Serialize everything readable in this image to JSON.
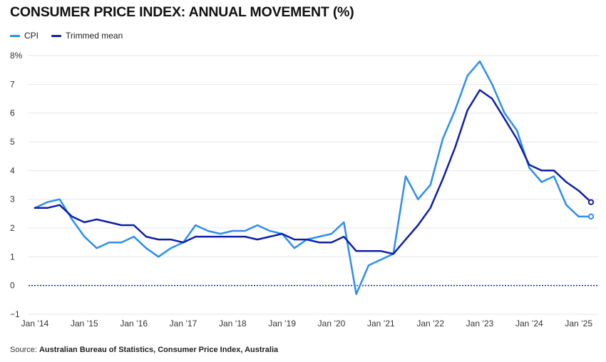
{
  "colors": {
    "cpi": "#2b8ef0",
    "trimmed": "#0d1fa8",
    "zero_line": "#0d1fa8",
    "grid": "#e6e6e6"
  },
  "chart_data": {
    "type": "line",
    "title": "CONSUMER PRICE INDEX: ANNUAL MOVEMENT (%)",
    "ylim": [
      -1,
      8
    ],
    "y_ticks": [
      "8%",
      "7",
      "6",
      "5",
      "4",
      "3",
      "2",
      "1",
      "0",
      "−1"
    ],
    "x_ticks": [
      "Jan ’14",
      "Jan ’15",
      "Jan ’16",
      "Jan ’17",
      "Jan ’18",
      "Jan ’19",
      "Jan ’20",
      "Jan ’21",
      "Jan ’22",
      "Jan ’23",
      "Jan ’24",
      "Jan ’25"
    ],
    "x_start": "2014-01",
    "x_step_months": 3,
    "grid": "horizontal",
    "legend_position": "top-left",
    "series": [
      {
        "name": "CPI",
        "values": [
          2.7,
          2.9,
          3.0,
          2.3,
          1.7,
          1.3,
          1.5,
          1.5,
          1.7,
          1.3,
          1.0,
          1.3,
          1.5,
          2.1,
          1.9,
          1.8,
          1.9,
          1.9,
          2.1,
          1.9,
          1.8,
          1.3,
          1.6,
          1.7,
          1.8,
          2.2,
          -0.3,
          0.7,
          0.9,
          1.1,
          3.8,
          3.0,
          3.5,
          5.1,
          6.1,
          7.3,
          7.8,
          7.0,
          6.0,
          5.4,
          4.1,
          3.6,
          3.8,
          2.8,
          2.4,
          2.4
        ]
      },
      {
        "name": "Trimmed mean",
        "values": [
          2.7,
          2.7,
          2.8,
          2.4,
          2.2,
          2.3,
          2.2,
          2.1,
          2.1,
          1.7,
          1.6,
          1.6,
          1.5,
          1.7,
          1.7,
          1.7,
          1.7,
          1.7,
          1.6,
          1.7,
          1.8,
          1.6,
          1.6,
          1.5,
          1.5,
          1.7,
          1.2,
          1.2,
          1.2,
          1.1,
          1.6,
          2.1,
          2.7,
          3.7,
          4.8,
          6.1,
          6.8,
          6.5,
          5.8,
          5.1,
          4.2,
          4.0,
          4.0,
          3.6,
          3.3,
          2.9
        ]
      }
    ]
  },
  "source": {
    "prefix": "Source: ",
    "text": "Australian Bureau of Statistics, Consumer Price Index, Australia"
  }
}
